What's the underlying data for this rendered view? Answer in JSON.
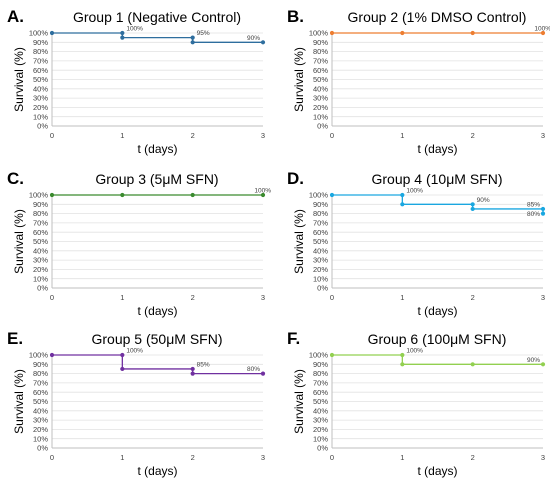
{
  "chart_data": [
    {
      "type": "line",
      "panel_label": "A.",
      "title": "Group 1 (Negative Control)",
      "color": "#2e6e9e",
      "xlabel": "t (days)",
      "ylabel": "Survival (%)",
      "x_ticks": [
        "0",
        "1",
        "2",
        "3"
      ],
      "y_ticks": [
        "0%",
        "10%",
        "20%",
        "30%",
        "40%",
        "50%",
        "60%",
        "70%",
        "80%",
        "90%",
        "100%"
      ],
      "xlim": [
        0,
        3
      ],
      "ylim": [
        0,
        100
      ],
      "step": true,
      "x": [
        0,
        1,
        2,
        3
      ],
      "values": [
        100,
        95,
        90,
        90
      ],
      "data_labels": [
        {
          "x": 1,
          "y": 100,
          "text": "100%"
        },
        {
          "x": 2,
          "y": 95,
          "text": "95%"
        },
        {
          "x": 3,
          "y": 90,
          "text": "90%"
        }
      ]
    },
    {
      "type": "line",
      "panel_label": "B.",
      "title": "Group 2 (1% DMSO Control)",
      "color": "#ed7d31",
      "xlabel": "t (days)",
      "ylabel": "Survival (%)",
      "x_ticks": [
        "0",
        "1",
        "2",
        "3"
      ],
      "y_ticks": [
        "0%",
        "10%",
        "20%",
        "30%",
        "40%",
        "50%",
        "60%",
        "70%",
        "80%",
        "90%",
        "100%"
      ],
      "xlim": [
        0,
        3
      ],
      "ylim": [
        0,
        100
      ],
      "step": true,
      "x": [
        0,
        1,
        2,
        3
      ],
      "values": [
        100,
        100,
        100,
        100
      ],
      "data_labels": [
        {
          "x": 3,
          "y": 100,
          "text": "100%"
        }
      ]
    },
    {
      "type": "line",
      "panel_label": "C.",
      "title": "Group 3 (5μM SFN)",
      "color": "#3a8a2e",
      "xlabel": "t (days)",
      "ylabel": "Survival (%)",
      "x_ticks": [
        "0",
        "1",
        "2",
        "3"
      ],
      "y_ticks": [
        "0%",
        "10%",
        "20%",
        "30%",
        "40%",
        "50%",
        "60%",
        "70%",
        "80%",
        "90%",
        "100%"
      ],
      "xlim": [
        0,
        3
      ],
      "ylim": [
        0,
        100
      ],
      "step": true,
      "x": [
        0,
        1,
        2,
        3
      ],
      "values": [
        100,
        100,
        100,
        100
      ],
      "data_labels": [
        {
          "x": 3,
          "y": 100,
          "text": "100%"
        }
      ]
    },
    {
      "type": "line",
      "panel_label": "D.",
      "title": "Group 4 (10μM SFN)",
      "color": "#1aa7e0",
      "xlabel": "t (days)",
      "ylabel": "Survival (%)",
      "x_ticks": [
        "0",
        "1",
        "2",
        "3"
      ],
      "y_ticks": [
        "0%",
        "10%",
        "20%",
        "30%",
        "40%",
        "50%",
        "60%",
        "70%",
        "80%",
        "90%",
        "100%"
      ],
      "xlim": [
        0,
        3
      ],
      "ylim": [
        0,
        100
      ],
      "step": true,
      "x": [
        0,
        1,
        2,
        3
      ],
      "values": [
        100,
        90,
        85,
        80
      ],
      "data_labels": [
        {
          "x": 1,
          "y": 100,
          "text": "100%"
        },
        {
          "x": 2,
          "y": 90,
          "text": "90%"
        },
        {
          "x": 3,
          "y": 85,
          "text": "85%"
        },
        {
          "x": 3,
          "y": 80,
          "text": "80%"
        }
      ]
    },
    {
      "type": "line",
      "panel_label": "E.",
      "title": "Group 5 (50μM SFN)",
      "color": "#7030a0",
      "xlabel": "t (days)",
      "ylabel": "Survival (%)",
      "x_ticks": [
        "0",
        "1",
        "2",
        "3"
      ],
      "y_ticks": [
        "0%",
        "10%",
        "20%",
        "30%",
        "40%",
        "50%",
        "60%",
        "70%",
        "80%",
        "90%",
        "100%"
      ],
      "xlim": [
        0,
        3
      ],
      "ylim": [
        0,
        100
      ],
      "step": true,
      "x": [
        0,
        1,
        2,
        3
      ],
      "values": [
        100,
        85,
        80,
        80
      ],
      "data_labels": [
        {
          "x": 1,
          "y": 100,
          "text": "100%"
        },
        {
          "x": 2,
          "y": 85,
          "text": "85%"
        },
        {
          "x": 3,
          "y": 80,
          "text": "80%"
        }
      ]
    },
    {
      "type": "line",
      "panel_label": "F.",
      "title": "Group 6 (100μM SFN)",
      "color": "#92d050",
      "xlabel": "t (days)",
      "ylabel": "Survival (%)",
      "x_ticks": [
        "0",
        "1",
        "2",
        "3"
      ],
      "y_ticks": [
        "0%",
        "10%",
        "20%",
        "30%",
        "40%",
        "50%",
        "60%",
        "70%",
        "80%",
        "90%",
        "100%"
      ],
      "xlim": [
        0,
        3
      ],
      "ylim": [
        0,
        100
      ],
      "step": true,
      "x": [
        0,
        1,
        2,
        3
      ],
      "values": [
        100,
        90,
        90,
        90
      ],
      "data_labels": [
        {
          "x": 1,
          "y": 100,
          "text": "100%"
        },
        {
          "x": 3,
          "y": 90,
          "text": "90%"
        }
      ]
    }
  ]
}
